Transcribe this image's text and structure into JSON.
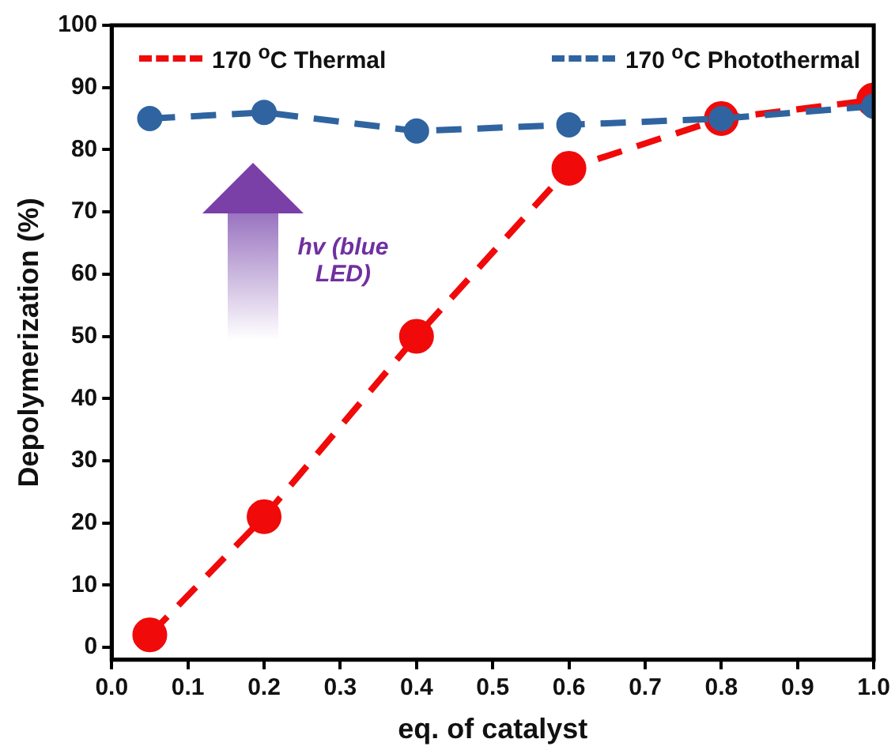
{
  "chart_data": {
    "type": "line",
    "xlabel": "eq. of catalyst",
    "ylabel": "Depolymerization (%)",
    "x": [
      0.05,
      0.2,
      0.4,
      0.6,
      0.8,
      1.0
    ],
    "series": [
      {
        "name": "170 $^{o}$C Thermal",
        "color": "#f00a0a",
        "values": [
          2,
          21,
          50,
          77,
          85,
          88
        ]
      },
      {
        "name": "170 $^{o}$C Photothermal",
        "color": "#2f64a0",
        "values": [
          85,
          86,
          83,
          84,
          85,
          87
        ]
      }
    ],
    "xlim": [
      0,
      1.0
    ],
    "xticks": [
      {
        "value": 0,
        "label": "0.0"
      },
      {
        "value": 0.1,
        "label": "0.1"
      },
      {
        "value": 0.2,
        "label": "0.2"
      },
      {
        "value": 0.3,
        "label": "0.3"
      },
      {
        "value": 0.4,
        "label": "0.4"
      },
      {
        "value": 0.5,
        "label": "0.5"
      },
      {
        "value": 0.6,
        "label": "0.6"
      },
      {
        "value": 0.7,
        "label": "0.7"
      },
      {
        "value": 0.8,
        "label": "0.8"
      },
      {
        "value": 0.9,
        "label": "0.9"
      },
      {
        "value": 1.0,
        "label": "1.0"
      }
    ],
    "ylim": [
      -2,
      100
    ],
    "yticks": [
      0,
      10,
      20,
      30,
      40,
      50,
      60,
      70,
      80,
      90,
      100
    ],
    "annotations": [
      "hv (blue LED)"
    ],
    "legend": "top",
    "grid": false,
    "marker": "circle",
    "line_style": "dashed"
  }
}
